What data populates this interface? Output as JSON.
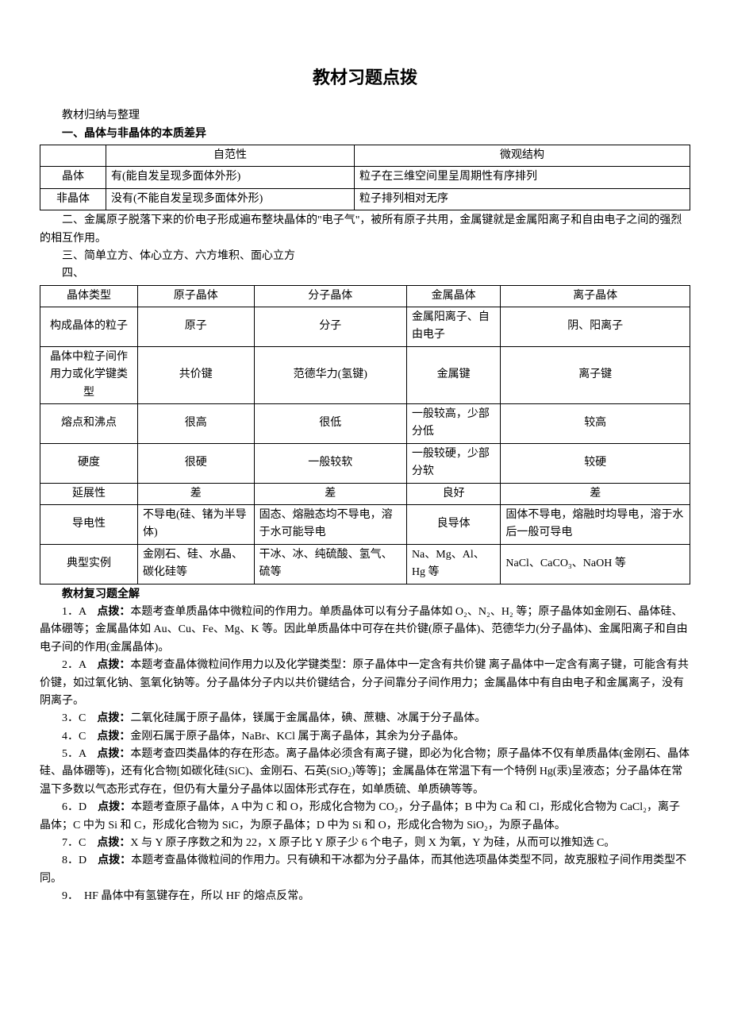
{
  "title": "教材习题点拨",
  "section_intro": "教材归纳与整理",
  "section1_title": "一、晶体与非晶体的本质差异",
  "table1": {
    "columns": [
      "",
      "自范性",
      "微观结构"
    ],
    "rows": [
      [
        "晶体",
        "有(能自发呈现多面体外形)",
        "粒子在三维空间里呈周期性有序排列"
      ],
      [
        "非晶体",
        "没有(不能自发呈现多面体外形)",
        "粒子排列相对无序"
      ]
    ],
    "border_color": "#000000",
    "background_color": "#ffffff"
  },
  "section2_text": "二、金属原子脱落下来的价电子形成遍布整块晶体的\"电子气\"，被所有原子共用，金属键就是金属阳离子和自由电子之间的强烈的相互作用。",
  "section3_text": "三、简单立方、体心立方、六方堆积、面心立方",
  "section4_text": "四、",
  "table2": {
    "columns": [
      "晶体类型",
      "原子晶体",
      "分子晶体",
      "金属晶体",
      "离子晶体"
    ],
    "rows": [
      {
        "label": "构成晶体的粒子",
        "cells": [
          "原子",
          "分子",
          "金属阳离子、自由电子",
          "阴、阳离子"
        ]
      },
      {
        "label": "晶体中粒子间作用力或化学键类型",
        "cells": [
          "共价键",
          "范德华力(氢键)",
          "金属键",
          "离子键"
        ]
      },
      {
        "label": "熔点和沸点",
        "cells": [
          "很高",
          "很低",
          "一般较高，少部分低",
          "较高"
        ]
      },
      {
        "label": "硬度",
        "cells": [
          "很硬",
          "一般较软",
          "一般较硬，少部分软",
          "较硬"
        ]
      },
      {
        "label": "延展性",
        "cells": [
          "差",
          "差",
          "良好",
          "差"
        ]
      },
      {
        "label": "导电性",
        "cells": [
          "不导电(硅、锗为半导体)",
          "固态、熔融态均不导电，溶于水可能导电",
          "良导体",
          "固体不导电，熔融时均导电，溶于水后一般可导电"
        ]
      },
      {
        "label": "典型实例",
        "cells": [
          "金刚石、硅、水晶、碳化硅等",
          "干冰、冰、纯硫酸、氢气、硫等",
          "Na、Mg、Al、Hg 等",
          "NaCl、CaCO₃、NaOH 等"
        ]
      }
    ],
    "border_color": "#000000",
    "background_color": "#ffffff"
  },
  "review_title": "教材复习题全解",
  "answers": [
    {
      "num": "1．A",
      "text": "点拨：本题考查单质晶体中微粒间的作用力。单质晶体可以有分子晶体如 O₂、N₂、H₂ 等；原子晶体如金刚石、晶体硅、晶体硼等；金属晶体如 Au、Cu、Fe、Mg、K 等。因此单质晶体中可存在共价键(原子晶体)、范德华力(分子晶体)、金属阳离子和自由电子间的作用(金属晶体)。"
    },
    {
      "num": "2．A",
      "text": "点拨：本题考查晶体微粒间作用力以及化学键类型：原子晶体中一定含有共价键 离子晶体中一定含有离子键，可能含有共价键，如过氧化钠、氢氧化钠等。分子晶体分子内以共价键结合，分子间靠分子间作用力；金属晶体中有自由电子和金属离子，没有阴离子。"
    },
    {
      "num": "3．C",
      "text": "点拨：二氧化硅属于原子晶体，镁属于金属晶体，碘、蔗糖、冰属于分子晶体。"
    },
    {
      "num": "4．C",
      "text": "点拨：金刚石属于原子晶体，NaBr、KCl 属于离子晶体，其余为分子晶体。"
    },
    {
      "num": "5．A",
      "text": "点拨：本题考查四类晶体的存在形态。离子晶体必须含有离子键，即必为化合物；原子晶体不仅有单质晶体(金刚石、晶体硅、晶体硼等)，还有化合物[如碳化硅(SiC)、金刚石、石英(SiO₂)等等]；金属晶体在常温下有一个特例 Hg(汞)呈液态；分子晶体在常温下多数以气态形式存在，但仍有大量分子晶体以固体形式存在，如单质硫、单质碘等等。"
    },
    {
      "num": "6．D",
      "text": "点拨：本题考查原子晶体，A 中为 C 和 O，形成化合物为 CO₂，分子晶体；B 中为 Ca 和 Cl，形成化合物为 CaCl₂，离子晶体；C 中为 Si 和 C，形成化合物为 SiC，为原子晶体；D 中为 Si 和 O，形成化合物为 SiO₂，为原子晶体。"
    },
    {
      "num": "7．C",
      "text": "点拨：X 与 Y 原子序数之和为 22，X 原子比 Y 原子少 6 个电子，则 X 为氧，Y 为硅，从而可以推知选 C。"
    },
    {
      "num": "8．D",
      "text": "点拨：本题考查晶体微粒间的作用力。只有碘和干冰都为分子晶体，而其他选项晶体类型不同，故克服粒子间作用类型不同。"
    },
    {
      "num": "9．",
      "text": "HF 晶体中有氢键存在，所以 HF 的熔点反常。"
    }
  ]
}
